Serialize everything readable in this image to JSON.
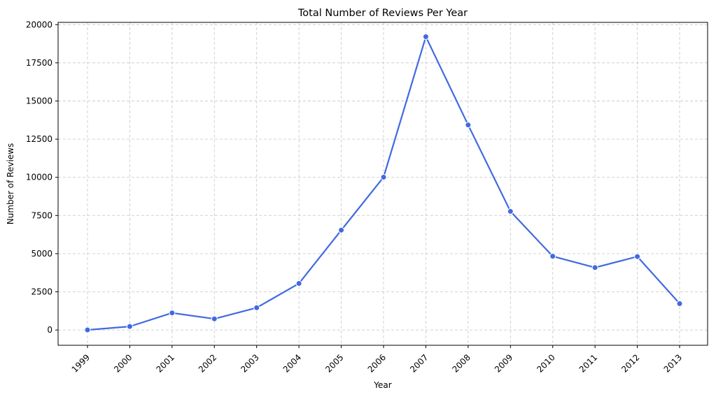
{
  "chart_data": {
    "type": "line",
    "title": "Total Number of Reviews Per Year",
    "xlabel": "Year",
    "ylabel": "Number of Reviews",
    "x": [
      "1999",
      "2000",
      "2001",
      "2002",
      "2003",
      "2004",
      "2005",
      "2006",
      "2007",
      "2008",
      "2009",
      "2010",
      "2011",
      "2012",
      "2013"
    ],
    "series": [
      {
        "name": "",
        "values": [
          6,
          230,
          1120,
          730,
          1460,
          3050,
          6540,
          10010,
          19210,
          13430,
          7770,
          4830,
          4090,
          4810,
          1730
        ]
      }
    ],
    "ylim": [
      -1000,
      20150
    ],
    "yticks": [
      0,
      2500,
      5000,
      7500,
      10000,
      12500,
      15000,
      17500,
      20000
    ],
    "ytick_labels": [
      "0",
      "2500",
      "5000",
      "7500",
      "10000",
      "12500",
      "15000",
      "17500",
      "20000"
    ],
    "grid": true,
    "legend": "none",
    "line_color": "#4169e1",
    "marker": "circle",
    "xtick_rotation": 45
  }
}
